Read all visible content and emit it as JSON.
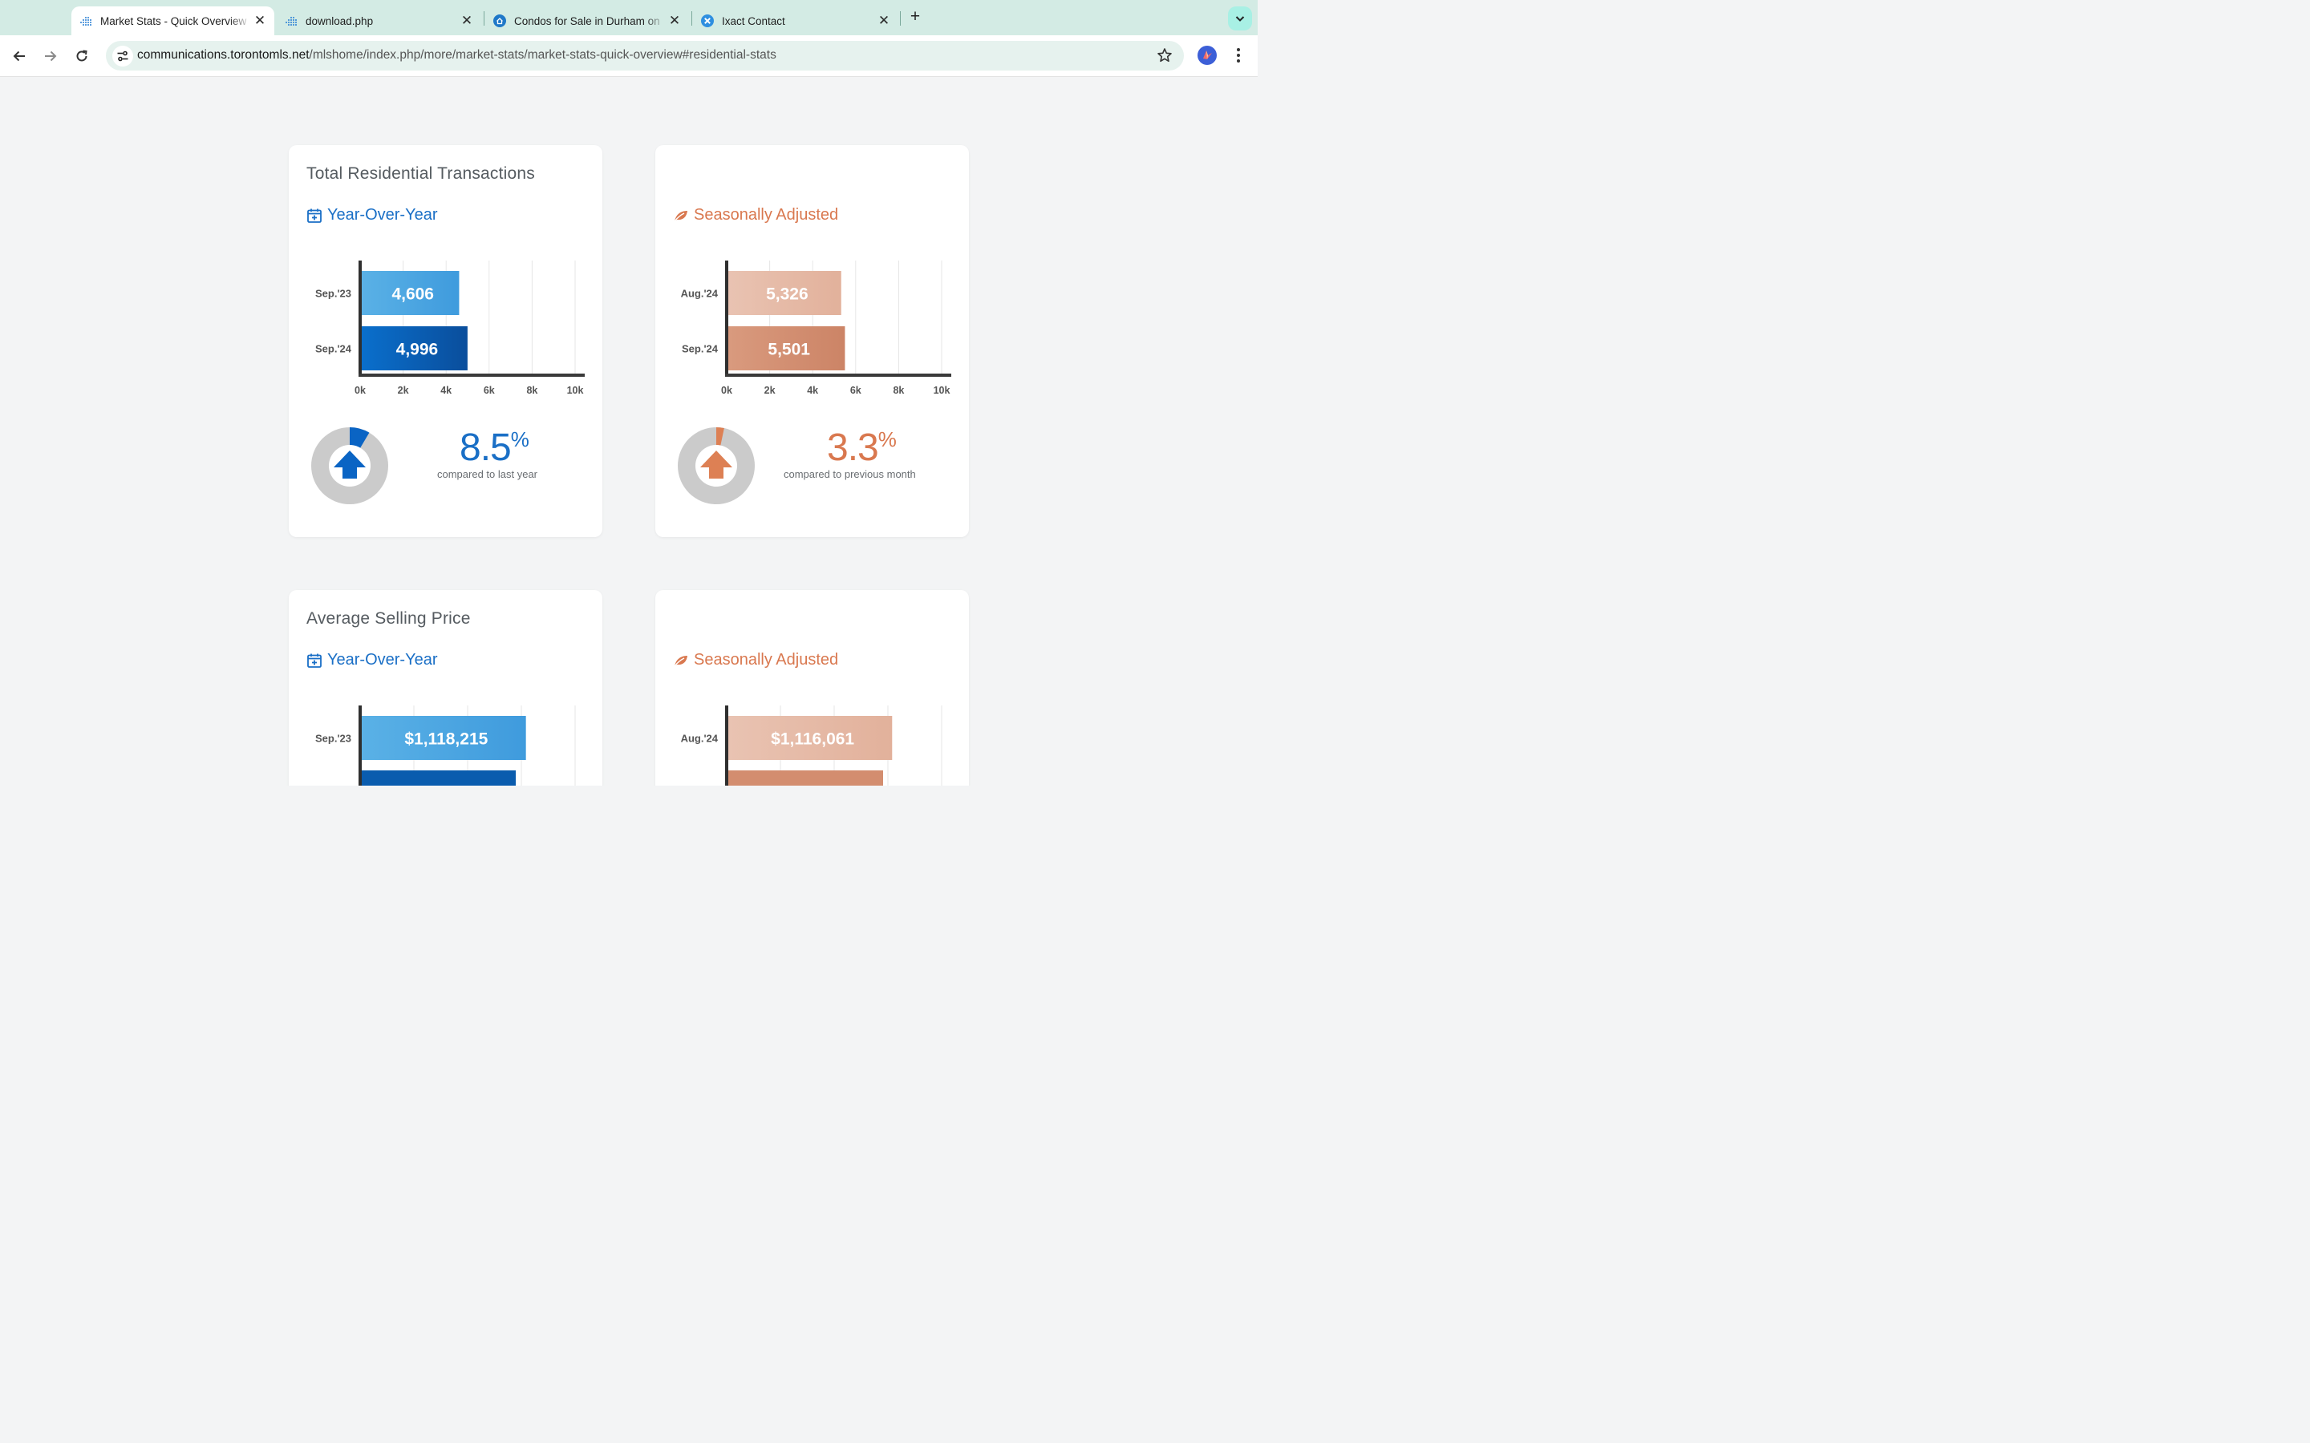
{
  "browser": {
    "tabs": [
      {
        "title": "Market Stats - Quick Overview",
        "active": true
      },
      {
        "title": "download.php",
        "active": false
      },
      {
        "title": "Condos for Sale in Durham on",
        "active": false
      },
      {
        "title": "Ixact Contact",
        "active": false
      }
    ],
    "url_host": "communications.torontomls.net",
    "url_path": "/mlshome/index.php/more/market-stats/market-stats-quick-overview#residential-stats"
  },
  "colors": {
    "blue_light": "#4aa6e0",
    "blue_dark": "#0a5fb4",
    "orange_light": "#e6b9a5",
    "orange_dark": "#d38d6f",
    "blue_text": "#1a6fc6",
    "orange_text": "#d9784f",
    "donut_gray": "#cbcbcb"
  },
  "sections": [
    {
      "title": "Total Residential Transactions",
      "yoy_label": "Year-Over-Year",
      "sa_label": "Seasonally Adjusted",
      "yoy_change": {
        "value": "8.5",
        "sign": "%",
        "caption": "compared to last year",
        "fraction": 0.085
      },
      "sa_change": {
        "value": "3.3",
        "sign": "%",
        "caption": "compared to previous month",
        "fraction": 0.033
      }
    },
    {
      "title": "Average Selling Price",
      "yoy_label": "Year-Over-Year",
      "sa_label": "Seasonally Adjusted"
    }
  ],
  "chart_data": [
    {
      "type": "bar",
      "orientation": "horizontal",
      "categories": [
        "Sep.'23",
        "Sep.'24"
      ],
      "values": [
        4606,
        4996
      ],
      "value_labels": [
        "4,606",
        "4,996"
      ],
      "xlim": [
        0,
        10000
      ],
      "xticks": [
        0,
        2000,
        4000,
        6000,
        8000,
        10000
      ],
      "xtick_labels": [
        "0k",
        "2k",
        "4k",
        "6k",
        "8k",
        "10k"
      ],
      "grid": true
    },
    {
      "type": "bar",
      "orientation": "horizontal",
      "categories": [
        "Aug.'24",
        "Sep.'24"
      ],
      "values": [
        5326,
        5501
      ],
      "value_labels": [
        "5,326",
        "5,501"
      ],
      "xlim": [
        0,
        10000
      ],
      "xticks": [
        0,
        2000,
        4000,
        6000,
        8000,
        10000
      ],
      "xtick_labels": [
        "0k",
        "2k",
        "4k",
        "6k",
        "8k",
        "10k"
      ],
      "grid": true
    },
    {
      "type": "bar",
      "orientation": "horizontal",
      "categories": [
        "Sep.'23"
      ],
      "values": [
        1118215
      ],
      "value_labels": [
        "$1,118,215"
      ],
      "grid": true
    },
    {
      "type": "bar",
      "orientation": "horizontal",
      "categories": [
        "Aug.'24"
      ],
      "values": [
        1116061
      ],
      "value_labels": [
        "$1,116,061"
      ],
      "grid": true
    }
  ]
}
